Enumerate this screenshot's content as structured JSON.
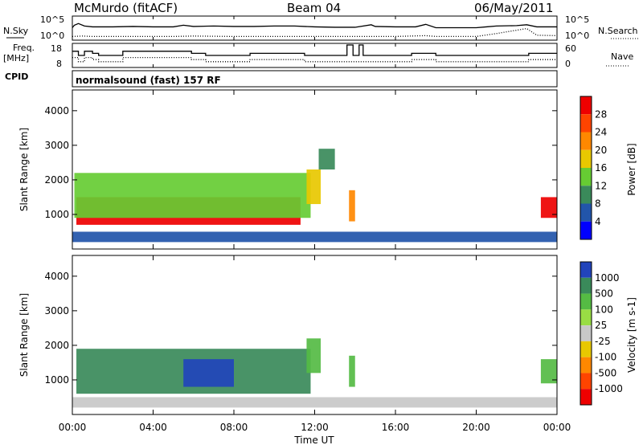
{
  "header": {
    "station": "McMurdo (fitACF)",
    "beam": "Beam 04",
    "date": "06/May/2011"
  },
  "chart_data": [
    {
      "type": "line",
      "name": "noise-panel",
      "left_label": "N.Sky",
      "right_label": "N.Search",
      "left_ticks": [
        "10^5",
        "10^0"
      ],
      "right_ticks": [
        "10^5",
        "10^0"
      ],
      "x_range_hours": [
        0,
        24
      ],
      "series": [
        {
          "name": "N.Sky",
          "style": "solid",
          "x": [
            0,
            0.1,
            0.3,
            0.6,
            1,
            2,
            3,
            4,
            5,
            5.5,
            6,
            7,
            8,
            9,
            10,
            11,
            12,
            13,
            14,
            14.8,
            15,
            16,
            17,
            17.5,
            18,
            19,
            20,
            20.5,
            21,
            22,
            22.5,
            23,
            24
          ],
          "y": [
            2.6,
            3.2,
            3.6,
            3.0,
            2.8,
            2.8,
            2.9,
            2.8,
            2.8,
            3.2,
            2.9,
            3.0,
            2.9,
            2.9,
            3.0,
            3.0,
            2.8,
            2.7,
            2.7,
            3.3,
            2.9,
            2.8,
            2.8,
            3.4,
            2.6,
            2.6,
            2.6,
            2.8,
            3.0,
            3.1,
            3.3,
            2.8,
            2.8
          ]
        },
        {
          "name": "N.Search",
          "style": "dotted",
          "x": [
            0,
            0.5,
            1,
            3,
            5,
            6,
            8,
            10,
            12,
            14,
            16,
            17.5,
            18,
            20,
            21,
            22,
            22.5,
            23,
            24
          ],
          "y": [
            0.5,
            0.6,
            0.5,
            0.5,
            0.5,
            0.6,
            0.5,
            0.5,
            0.5,
            0.5,
            0.5,
            0.7,
            0.5,
            0.5,
            1.2,
            2.0,
            2.4,
            0.8,
            0.7
          ]
        }
      ]
    },
    {
      "type": "line",
      "name": "frequency-panel",
      "left_label_lines": [
        "Freq.",
        "[MHz]"
      ],
      "right_label": "Nave",
      "left_ticks": [
        "18",
        "8"
      ],
      "right_ticks": [
        "60",
        "0"
      ],
      "ylim_left": [
        8,
        18
      ],
      "x_range_hours": [
        0,
        24
      ],
      "series": [
        {
          "name": "Freq.",
          "style": "solid",
          "x": [
            0,
            0.3,
            0.6,
            1.0,
            1.3,
            2.2,
            2.5,
            5.5,
            5.9,
            6.6,
            8.3,
            8.8,
            10.5,
            11.5,
            12.5,
            13.3,
            13.6,
            13.9,
            14.2,
            14.4,
            16.3,
            16.8,
            18.0,
            20.0,
            22.6,
            24
          ],
          "y": [
            15,
            13,
            15,
            14,
            13,
            13,
            15,
            15,
            14,
            13,
            13,
            14,
            14,
            13,
            13,
            13,
            18,
            13,
            18,
            13,
            13,
            14,
            13,
            13,
            14,
            14
          ]
        },
        {
          "name": "Nave",
          "style": "dotted",
          "x": [
            0,
            0.3,
            0.6,
            1.0,
            1.3,
            2.2,
            2.5,
            5.5,
            5.9,
            6.6,
            8.3,
            8.8,
            10.5,
            11.5,
            12.5,
            13.3,
            13.9,
            14.4,
            16.3,
            16.8,
            18.0,
            20.0,
            22.6,
            24
          ],
          "y": [
            12,
            10,
            12,
            11,
            10,
            10,
            12,
            12,
            11,
            10,
            10,
            11,
            11,
            10,
            10,
            10,
            10,
            10,
            10,
            11,
            10,
            10,
            11,
            11
          ]
        }
      ]
    },
    {
      "name": "cpid-panel",
      "label": "CPID",
      "text": "normalsound (fast) 157 RF"
    },
    {
      "type": "heatmap",
      "name": "power-panel",
      "ylabel": "Slant Range [km]",
      "yticks": [
        "1000",
        "2000",
        "3000",
        "4000"
      ],
      "colorbar_label": "Power [dB]",
      "colorbar_ticks": [
        "4",
        "8",
        "12",
        "16",
        "20",
        "24",
        "28"
      ],
      "colors": [
        "#0000ff",
        "#2255aa",
        "#3a8a5a",
        "#66cc33",
        "#e8c800",
        "#ff8800",
        "#ff4400",
        "#ee0000"
      ],
      "regions": [
        {
          "x": [
            0.2,
            11.3
          ],
          "y": [
            700,
            1500
          ],
          "level": 7
        },
        {
          "x": [
            0.1,
            11.8
          ],
          "y": [
            900,
            2200
          ],
          "level": 3
        },
        {
          "x": [
            11.6,
            12.3
          ],
          "y": [
            1300,
            2300
          ],
          "level": 4
        },
        {
          "x": [
            13.7,
            14.0
          ],
          "y": [
            800,
            1700
          ],
          "level": 5
        },
        {
          "x": [
            23.2,
            24.0
          ],
          "y": [
            900,
            1500
          ],
          "level": 7
        },
        {
          "x": [
            0.0,
            24.0
          ],
          "y": [
            200,
            500
          ],
          "level": 1
        },
        {
          "x": [
            12.2,
            13.0
          ],
          "y": [
            2300,
            2900
          ],
          "level": 2
        }
      ]
    },
    {
      "type": "heatmap",
      "name": "velocity-panel",
      "ylabel": "Slant Range [km]",
      "yticks": [
        "1000",
        "2000",
        "3000",
        "4000"
      ],
      "colorbar_label": "Velocity [m s-1]",
      "colorbar_ticks": [
        "1000",
        "500",
        "100",
        "25",
        "-25",
        "-100",
        "-500",
        "-1000"
      ],
      "colors": [
        "#2244bb",
        "#3a8a5a",
        "#55bb44",
        "#99dd44",
        "#c8c8c8",
        "#e8c800",
        "#ff8800",
        "#ff4400",
        "#ee0000"
      ],
      "regions": [
        {
          "x": [
            0.2,
            11.8
          ],
          "y": [
            600,
            1900
          ],
          "level": 1
        },
        {
          "x": [
            5.5,
            8.0
          ],
          "y": [
            800,
            1600
          ],
          "level": 0
        },
        {
          "x": [
            11.6,
            12.3
          ],
          "y": [
            1200,
            2200
          ],
          "level": 2
        },
        {
          "x": [
            13.7,
            14.0
          ],
          "y": [
            800,
            1700
          ],
          "level": 2
        },
        {
          "x": [
            23.2,
            24.0
          ],
          "y": [
            900,
            1600
          ],
          "level": 2
        },
        {
          "x": [
            0.0,
            24.0
          ],
          "y": [
            200,
            500
          ],
          "level": 4
        }
      ],
      "xticks": [
        "00:00",
        "04:00",
        "08:00",
        "12:00",
        "16:00",
        "20:00",
        "00:00"
      ],
      "xlabel": "Time UT",
      "xlim_hours": [
        0,
        24
      ]
    }
  ]
}
